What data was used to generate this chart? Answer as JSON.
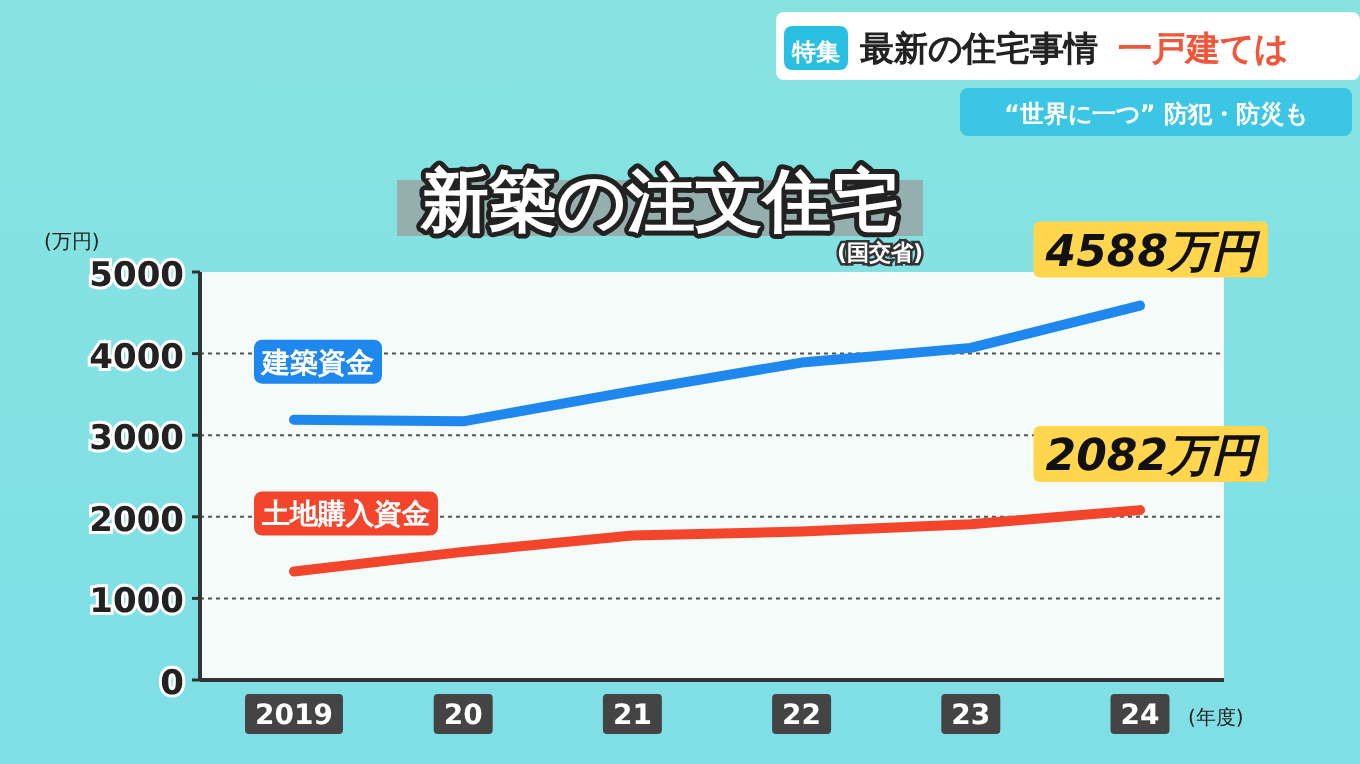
{
  "chart_data": {
    "type": "line",
    "title": "新築の注文住宅",
    "subtitle": "(国交省)",
    "xlabel": "(年度)",
    "ylabel": "(万円)",
    "categories": [
      "2019",
      "20",
      "21",
      "22",
      "23",
      "24"
    ],
    "series": [
      {
        "name": "建築資金",
        "color": "#1e88ee",
        "values": [
          3190,
          3170,
          3540,
          3890,
          4070,
          4588
        ],
        "value_labels": [
          null,
          null,
          null,
          null,
          null,
          "4588万円"
        ]
      },
      {
        "name": "土地購入資金",
        "color": "#f2452c",
        "values": [
          1330,
          1570,
          1770,
          1820,
          1910,
          2082
        ],
        "value_labels": [
          null,
          null,
          null,
          null,
          null,
          "2082万円"
        ]
      }
    ],
    "ylim": [
      0,
      5000
    ],
    "yticks": [
      0,
      1000,
      2000,
      3000,
      4000,
      5000
    ],
    "grid": "y",
    "annotations": [
      "特集",
      "最新の住宅事情",
      "一戸建ては",
      "“世界に一つ” 防犯・防災も"
    ]
  }
}
